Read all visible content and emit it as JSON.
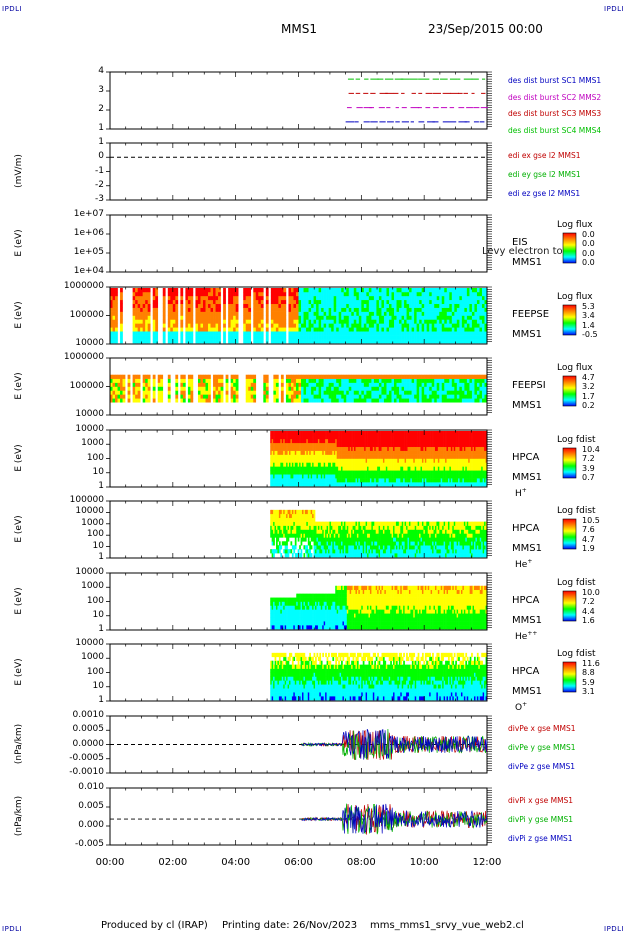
{
  "header": {
    "corner_tl": "IPDLI",
    "corner_tr": "IPDLI",
    "corner_bl": "IPDLI",
    "corner_br": "IPDLI",
    "spacecraft": "MMS1",
    "datetime": "23/Sep/2015 00:00"
  },
  "footer": {
    "produced_by": "Produced by cl (IRAP)",
    "printing_date": "Printing date: 26/Nov/2023",
    "filename": "mms_mms1_srvy_vue_web2.cl"
  },
  "colors": {
    "spectrogram_scale": [
      "#0000ff",
      "#00ffff",
      "#00ff00",
      "#ffff00",
      "#ff8000",
      "#ff0000"
    ],
    "axis": "#000000"
  },
  "chart_data": [
    {
      "type": "scatter",
      "ylim": [
        0.5,
        4.5
      ],
      "y_ticks": [
        "4",
        "3",
        "2",
        "1"
      ],
      "series": [
        {
          "name": "des dist burst SC1 MMS1",
          "color": "#0000c0",
          "level": 1
        },
        {
          "name": "des dist burst SC2 MMS2",
          "color": "#c000c0",
          "level": 2
        },
        {
          "name": "des dist burst SC3 MMS3",
          "color": "#c00000",
          "level": 3
        },
        {
          "name": "des dist burst SC4 MMS4",
          "color": "#00c000",
          "level": 4
        }
      ]
    },
    {
      "type": "line",
      "ylabel": "(mV/m)",
      "ylim": [
        -3,
        1
      ],
      "y_ticks": [
        "1",
        "0",
        "-1",
        "-2",
        "-3"
      ],
      "series": [
        {
          "name": "edi ex gse l2 MMS1",
          "color": "#c00000"
        },
        {
          "name": "edi ey gse l2 MMS1",
          "color": "#00b000"
        },
        {
          "name": "edi ez gse l2 MMS1",
          "color": "#0000c0"
        }
      ]
    },
    {
      "type": "heatmap",
      "ylabel": "E (eV)",
      "y_ticks": [
        "1e+07",
        "1e+06",
        "1e+05",
        "1e+04"
      ],
      "instrument": "EIS",
      "spacecraft": "MMS1",
      "overlay_text": "Levy electron to",
      "colorbar_title": "Log flux",
      "colorbar_ticks": [
        "0.0",
        "0.0",
        "0.0",
        "0.0"
      ],
      "data_start_hour": 0
    },
    {
      "type": "heatmap",
      "ylabel": "E (eV)",
      "y_ticks": [
        "1000000",
        "100000",
        "10000"
      ],
      "instrument": "FEEPSE",
      "spacecraft": "MMS1",
      "colorbar_title": "Log flux",
      "colorbar_ticks": [
        "5.3",
        "3.4",
        "1.4",
        "-0.5"
      ],
      "data_start_hour": 0
    },
    {
      "type": "heatmap",
      "ylabel": "E (eV)",
      "y_ticks": [
        "1000000",
        "100000",
        "10000"
      ],
      "instrument": "FEEPSI",
      "spacecraft": "MMS1",
      "colorbar_title": "Log flux",
      "colorbar_ticks": [
        "4.7",
        "3.2",
        "1.7",
        "0.2"
      ],
      "data_start_hour": 0
    },
    {
      "type": "heatmap",
      "ylabel": "E (eV)",
      "y_ticks": [
        "10000",
        "1000",
        "100",
        "10",
        "1"
      ],
      "instrument": "HPCA",
      "spacecraft": "MMS1",
      "species": "H",
      "species_sup": "+",
      "colorbar_title": "Log fdist",
      "colorbar_ticks": [
        "10.4",
        "7.2",
        "3.9",
        "0.7"
      ],
      "data_start_hour": 5.1
    },
    {
      "type": "heatmap",
      "ylabel": "E (eV)",
      "y_ticks": [
        "100000",
        "10000",
        "1000",
        "100",
        "10",
        "1"
      ],
      "instrument": "HPCA",
      "spacecraft": "MMS1",
      "species": "He",
      "species_sup": "+",
      "colorbar_title": "Log fdist",
      "colorbar_ticks": [
        "10.5",
        "7.6",
        "4.7",
        "1.9"
      ],
      "data_start_hour": 5.1
    },
    {
      "type": "heatmap",
      "ylabel": "E (eV)",
      "y_ticks": [
        "10000",
        "1000",
        "100",
        "10",
        "1"
      ],
      "instrument": "HPCA",
      "spacecraft": "MMS1",
      "species": "He",
      "species_sup": "++",
      "colorbar_title": "Log fdist",
      "colorbar_ticks": [
        "10.0",
        "7.2",
        "4.4",
        "1.6"
      ],
      "data_start_hour": 5.1
    },
    {
      "type": "heatmap",
      "ylabel": "E (eV)",
      "y_ticks": [
        "10000",
        "1000",
        "100",
        "10",
        "1"
      ],
      "instrument": "HPCA",
      "spacecraft": "MMS1",
      "species": "O",
      "species_sup": "+",
      "colorbar_title": "Log fdist",
      "colorbar_ticks": [
        "11.6",
        "8.8",
        "5.9",
        "3.1"
      ],
      "data_start_hour": 5.1
    },
    {
      "type": "line",
      "ylabel": "(nPa/km)",
      "ylim": [
        -0.0015,
        0.0015
      ],
      "y_ticks": [
        "0.0010",
        "0.0005",
        "0.0000",
        "-0.0005",
        "-0.0010"
      ],
      "data_start_hour": 6.1,
      "series": [
        {
          "name": "divPe x gse MMS1",
          "color": "#c00000"
        },
        {
          "name": "divPe y gse MMS1",
          "color": "#00b000"
        },
        {
          "name": "divPe z gse MMS1",
          "color": "#0000c0"
        }
      ]
    },
    {
      "type": "line",
      "ylabel": "(nPa/km)",
      "ylim": [
        -0.01,
        0.012
      ],
      "y_ticks": [
        "0.010",
        "0.005",
        "0.000",
        "-0.005"
      ],
      "data_start_hour": 6.1,
      "series": [
        {
          "name": "divPi x gse MMS1",
          "color": "#c00000"
        },
        {
          "name": "divPi y gse MMS1",
          "color": "#00b000"
        },
        {
          "name": "divPi z gse MMS1",
          "color": "#0000c0"
        }
      ]
    }
  ],
  "x_axis": {
    "ticks": [
      "00:00",
      "02:00",
      "04:00",
      "06:00",
      "08:00",
      "10:00",
      "12:00"
    ],
    "range_hours": [
      0,
      12
    ]
  }
}
